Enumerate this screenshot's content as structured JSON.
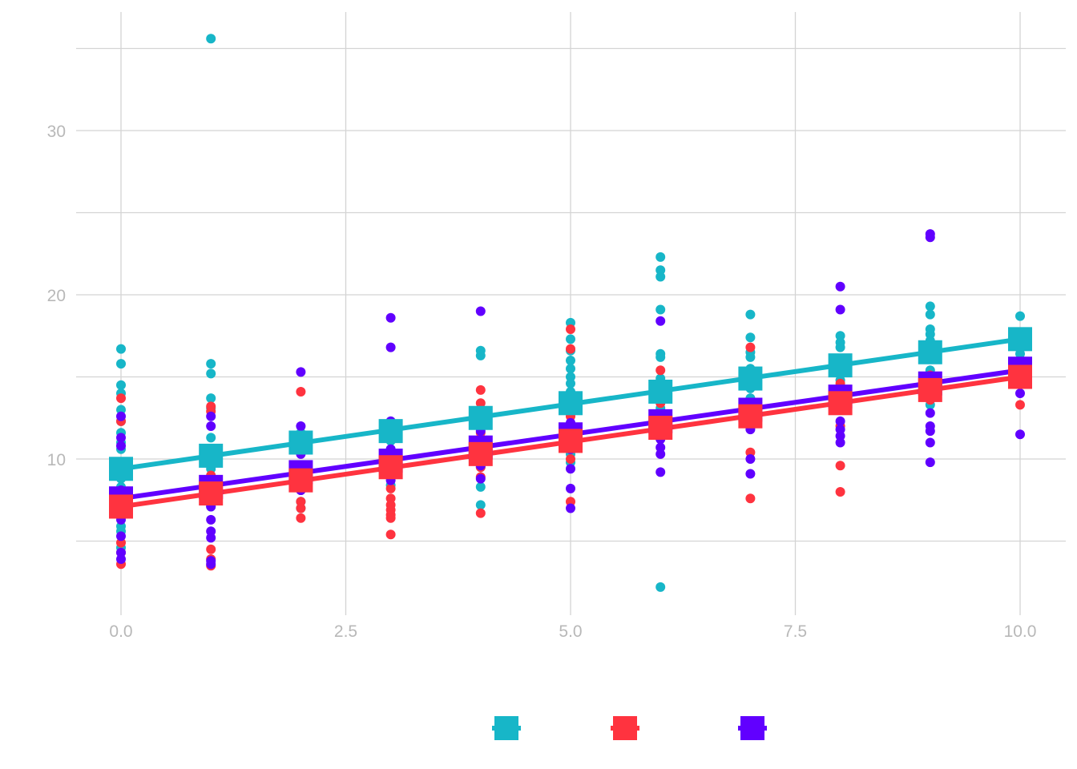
{
  "chart_data": {
    "type": "scatter",
    "title": "",
    "xlabel": "",
    "ylabel": "",
    "xlim": [
      -0.5,
      10.5
    ],
    "ylim": [
      1,
      37
    ],
    "x_ticks": [
      0,
      2.5,
      5,
      7.5,
      10
    ],
    "x_tick_labels": [
      "0.0",
      "2.5",
      "5.0",
      "7.5",
      "10.0"
    ],
    "y_ticks": [
      10,
      20,
      30
    ],
    "y_tick_labels": [
      "10",
      "20",
      "30"
    ],
    "grid": true,
    "legend_position": "bottom",
    "series": [
      {
        "color": "#17B6C8",
        "points": [
          [
            0,
            16.7
          ],
          [
            0,
            15.8
          ],
          [
            0,
            14.5
          ],
          [
            0,
            14.0
          ],
          [
            0,
            13.0
          ],
          [
            0,
            12.3
          ],
          [
            0,
            11.6
          ],
          [
            0,
            11.0
          ],
          [
            0,
            10.6
          ],
          [
            0,
            9.8
          ],
          [
            0,
            9.2
          ],
          [
            0,
            8.8
          ],
          [
            0,
            8.3
          ],
          [
            0,
            7.9
          ],
          [
            0,
            6.6
          ],
          [
            0,
            5.9
          ],
          [
            0,
            5.6
          ],
          [
            0,
            4.6
          ],
          [
            1,
            35.6
          ],
          [
            1,
            15.8
          ],
          [
            1,
            15.2
          ],
          [
            1,
            13.7
          ],
          [
            1,
            13.1
          ],
          [
            1,
            11.3
          ],
          [
            1,
            10.3
          ],
          [
            1,
            9.4
          ],
          [
            1,
            8.6
          ],
          [
            1,
            7.7
          ],
          [
            1,
            7.1
          ],
          [
            2,
            11.6
          ],
          [
            2,
            10.7
          ],
          [
            2,
            9.0
          ],
          [
            2,
            8.1
          ],
          [
            2,
            7.4
          ],
          [
            2,
            7.0
          ],
          [
            3,
            12.3
          ],
          [
            3,
            11.5
          ],
          [
            3,
            11.1
          ],
          [
            3,
            10.6
          ],
          [
            3,
            9.3
          ],
          [
            3,
            8.4
          ],
          [
            4,
            16.6
          ],
          [
            4,
            16.3
          ],
          [
            4,
            12.6
          ],
          [
            4,
            11.0
          ],
          [
            4,
            9.5
          ],
          [
            4,
            8.3
          ],
          [
            4,
            7.2
          ],
          [
            5,
            18.3
          ],
          [
            5,
            17.3
          ],
          [
            5,
            16.6
          ],
          [
            5,
            16.0
          ],
          [
            5,
            15.5
          ],
          [
            5,
            15.0
          ],
          [
            5,
            14.6
          ],
          [
            5,
            14.1
          ],
          [
            5,
            13.4
          ],
          [
            5,
            12.8
          ],
          [
            5,
            11.6
          ],
          [
            5,
            10.9
          ],
          [
            5,
            10.3
          ],
          [
            5,
            9.8
          ],
          [
            6,
            22.3
          ],
          [
            6,
            21.5
          ],
          [
            6,
            21.1
          ],
          [
            6,
            19.1
          ],
          [
            6,
            16.4
          ],
          [
            6,
            16.2
          ],
          [
            6,
            14.9
          ],
          [
            6,
            14.1
          ],
          [
            6,
            13.1
          ],
          [
            6,
            12.1
          ],
          [
            6,
            2.2
          ],
          [
            7,
            18.8
          ],
          [
            7,
            17.4
          ],
          [
            7,
            16.5
          ],
          [
            7,
            16.2
          ],
          [
            7,
            15.5
          ],
          [
            7,
            15.0
          ],
          [
            7,
            14.3
          ],
          [
            7,
            13.7
          ],
          [
            7,
            12.7
          ],
          [
            7,
            12.3
          ],
          [
            7,
            11.9
          ],
          [
            8,
            17.5
          ],
          [
            8,
            17.1
          ],
          [
            8,
            16.8
          ],
          [
            8,
            15.5
          ],
          [
            8,
            14.8
          ],
          [
            8,
            14.3
          ],
          [
            8,
            13.1
          ],
          [
            9,
            19.3
          ],
          [
            9,
            18.8
          ],
          [
            9,
            17.9
          ],
          [
            9,
            17.6
          ],
          [
            9,
            17.2
          ],
          [
            9,
            16.6
          ],
          [
            9,
            16.1
          ],
          [
            9,
            15.4
          ],
          [
            9,
            14.6
          ],
          [
            9,
            13.3
          ],
          [
            10,
            18.7
          ],
          [
            10,
            17.7
          ],
          [
            10,
            16.7
          ],
          [
            10,
            16.4
          ]
        ],
        "fit": [
          [
            0,
            9.4
          ],
          [
            10,
            17.3
          ]
        ],
        "means": [
          [
            0,
            9.4
          ],
          [
            1,
            10.2
          ],
          [
            2,
            11.0
          ],
          [
            3,
            11.7
          ],
          [
            4,
            12.5
          ],
          [
            5,
            13.4
          ],
          [
            6,
            14.1
          ],
          [
            7,
            14.9
          ],
          [
            8,
            15.7
          ],
          [
            9,
            16.5
          ],
          [
            10,
            17.3
          ]
        ]
      },
      {
        "color": "#FF333F",
        "points": [
          [
            0,
            13.7
          ],
          [
            0,
            12.3
          ],
          [
            0,
            9.0
          ],
          [
            0,
            7.2
          ],
          [
            0,
            6.7
          ],
          [
            0,
            4.9
          ],
          [
            0,
            4.3
          ],
          [
            0,
            3.6
          ],
          [
            1,
            13.2
          ],
          [
            1,
            12.9
          ],
          [
            1,
            9.0
          ],
          [
            1,
            8.4
          ],
          [
            1,
            7.6
          ],
          [
            1,
            4.5
          ],
          [
            1,
            3.9
          ],
          [
            1,
            3.5
          ],
          [
            2,
            14.1
          ],
          [
            2,
            8.1
          ],
          [
            2,
            7.4
          ],
          [
            2,
            7.0
          ],
          [
            2,
            6.4
          ],
          [
            3,
            9.4
          ],
          [
            3,
            8.2
          ],
          [
            3,
            7.6
          ],
          [
            3,
            7.2
          ],
          [
            3,
            6.9
          ],
          [
            3,
            6.6
          ],
          [
            3,
            6.4
          ],
          [
            3,
            5.4
          ],
          [
            4,
            14.2
          ],
          [
            4,
            13.4
          ],
          [
            4,
            11.6
          ],
          [
            4,
            10.2
          ],
          [
            4,
            9.5
          ],
          [
            4,
            8.9
          ],
          [
            4,
            6.7
          ],
          [
            5,
            17.9
          ],
          [
            5,
            16.7
          ],
          [
            5,
            12.6
          ],
          [
            5,
            10.0
          ],
          [
            5,
            7.4
          ],
          [
            6,
            15.4
          ],
          [
            6,
            13.4
          ],
          [
            6,
            11.3
          ],
          [
            7,
            16.8
          ],
          [
            7,
            13.0
          ],
          [
            7,
            10.4
          ],
          [
            7,
            7.6
          ],
          [
            8,
            14.6
          ],
          [
            8,
            12.0
          ],
          [
            8,
            9.6
          ],
          [
            8,
            8.0
          ],
          [
            9,
            15.1
          ],
          [
            9,
            13.6
          ],
          [
            10,
            14.8
          ],
          [
            10,
            13.3
          ]
        ],
        "fit": [
          [
            0,
            7.1
          ],
          [
            10,
            15.0
          ]
        ],
        "means": [
          [
            0,
            7.1
          ],
          [
            1,
            7.9
          ],
          [
            2,
            8.7
          ],
          [
            3,
            9.5
          ],
          [
            4,
            10.3
          ],
          [
            5,
            11.1
          ],
          [
            6,
            11.9
          ],
          [
            7,
            12.6
          ],
          [
            8,
            13.4
          ],
          [
            9,
            14.2
          ],
          [
            10,
            15.0
          ]
        ]
      },
      {
        "color": "#6100FF",
        "points": [
          [
            0,
            12.6
          ],
          [
            0,
            11.3
          ],
          [
            0,
            10.8
          ],
          [
            0,
            8.1
          ],
          [
            0,
            6.7
          ],
          [
            0,
            6.3
          ],
          [
            0,
            5.3
          ],
          [
            0,
            4.3
          ],
          [
            0,
            3.9
          ],
          [
            1,
            12.6
          ],
          [
            1,
            12.0
          ],
          [
            1,
            7.1
          ],
          [
            1,
            6.3
          ],
          [
            1,
            5.6
          ],
          [
            1,
            5.2
          ],
          [
            1,
            3.8
          ],
          [
            1,
            3.6
          ],
          [
            2,
            15.3
          ],
          [
            2,
            12.0
          ],
          [
            2,
            10.3
          ],
          [
            2,
            8.1
          ],
          [
            3,
            18.6
          ],
          [
            3,
            16.8
          ],
          [
            3,
            12.3
          ],
          [
            3,
            11.9
          ],
          [
            3,
            10.6
          ],
          [
            3,
            9.3
          ],
          [
            3,
            8.7
          ],
          [
            4,
            19.0
          ],
          [
            4,
            11.7
          ],
          [
            4,
            10.9
          ],
          [
            4,
            9.6
          ],
          [
            4,
            8.8
          ],
          [
            5,
            12.2
          ],
          [
            5,
            10.6
          ],
          [
            5,
            9.4
          ],
          [
            5,
            8.2
          ],
          [
            5,
            7.0
          ],
          [
            6,
            18.4
          ],
          [
            6,
            12.6
          ],
          [
            6,
            11.2
          ],
          [
            6,
            10.7
          ],
          [
            6,
            10.3
          ],
          [
            6,
            9.2
          ],
          [
            7,
            12.3
          ],
          [
            7,
            11.8
          ],
          [
            7,
            10.0
          ],
          [
            7,
            9.1
          ],
          [
            8,
            20.5
          ],
          [
            8,
            19.1
          ],
          [
            8,
            13.2
          ],
          [
            8,
            12.3
          ],
          [
            8,
            11.8
          ],
          [
            8,
            11.4
          ],
          [
            8,
            11.0
          ],
          [
            9,
            23.7
          ],
          [
            9,
            23.5
          ],
          [
            9,
            12.8
          ],
          [
            9,
            12.0
          ],
          [
            9,
            11.7
          ],
          [
            9,
            11.0
          ],
          [
            9,
            9.8
          ],
          [
            10,
            14.6
          ],
          [
            10,
            14.0
          ],
          [
            10,
            11.5
          ]
        ],
        "fit": [
          [
            0,
            7.6
          ],
          [
            10,
            15.4
          ]
        ],
        "means": [
          [
            0,
            7.6
          ],
          [
            1,
            8.3
          ],
          [
            2,
            9.2
          ],
          [
            3,
            9.9
          ],
          [
            4,
            10.7
          ],
          [
            5,
            11.5
          ],
          [
            6,
            12.3
          ],
          [
            7,
            13.0
          ],
          [
            8,
            13.8
          ],
          [
            9,
            14.6
          ],
          [
            10,
            15.5
          ]
        ]
      }
    ]
  }
}
